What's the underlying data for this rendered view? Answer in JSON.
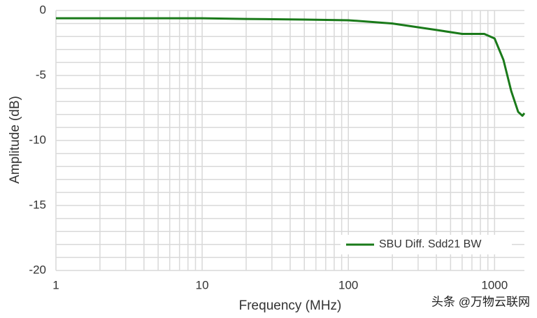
{
  "chart_data": {
    "type": "line",
    "x_label": "Frequency (MHz)",
    "y_label": "Amplitude (dB)",
    "x": [
      1,
      2,
      5,
      10,
      20,
      50,
      100,
      200,
      400,
      600,
      850,
      1000,
      1150,
      1300,
      1450,
      1550,
      1600
    ],
    "series": [
      {
        "name": "SBU Diff. Sdd21 BW",
        "color": "#1a7a1a",
        "values": [
          -0.6,
          -0.6,
          -0.6,
          -0.6,
          -0.65,
          -0.7,
          -0.75,
          -1.0,
          -1.5,
          -1.8,
          -1.8,
          -2.15,
          -3.8,
          -6.2,
          -7.8,
          -8.1,
          -7.9
        ]
      }
    ],
    "xlim": [
      1,
      1600
    ],
    "ylim": [
      -20,
      0
    ],
    "xscale": "log",
    "xticks": [
      1,
      10,
      100,
      1000
    ],
    "yticks": [
      0,
      -5,
      -10,
      -15,
      -20
    ],
    "minor_xticks": [
      2,
      3,
      4,
      5,
      6,
      7,
      8,
      9,
      20,
      30,
      40,
      50,
      60,
      70,
      80,
      90,
      200,
      300,
      400,
      500,
      600,
      700,
      800,
      900
    ],
    "minor_yticks": [
      -1,
      -2,
      -3,
      -4,
      -6,
      -7,
      -8,
      -9,
      -11,
      -12,
      -13,
      -14,
      -16,
      -17,
      -18,
      -19
    ],
    "grid": true,
    "legend": "lower right",
    "watermark": "头条 @万物云联网"
  }
}
